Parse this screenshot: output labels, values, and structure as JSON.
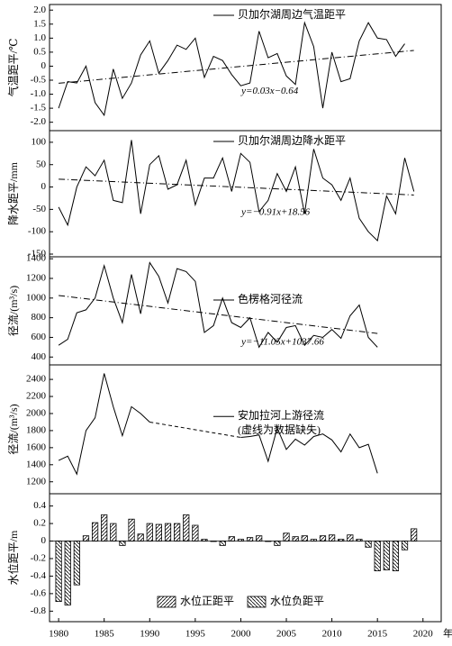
{
  "chart_data": [
    {
      "type": "line",
      "ylabel": "气温距平/℃",
      "xlim": [
        1979,
        2022
      ],
      "ylim": [
        -2.3,
        2.2
      ],
      "yticks": [
        {
          "value": 2,
          "label": "2.0"
        },
        1.5,
        {
          "value": 1,
          "label": "1.0"
        },
        0.5,
        0,
        -0.5,
        {
          "value": -1,
          "label": "-1.0"
        },
        -1.5,
        {
          "value": -2,
          "label": "-2.0"
        }
      ],
      "x": [
        1980,
        1981,
        1982,
        1983,
        1984,
        1985,
        1986,
        1987,
        1988,
        1989,
        1990,
        1991,
        1992,
        1993,
        1994,
        1995,
        1996,
        1997,
        1998,
        1999,
        2000,
        2001,
        2002,
        2003,
        2004,
        2005,
        2006,
        2007,
        2008,
        2009,
        2010,
        2011,
        2012,
        2013,
        2014,
        2015,
        2016,
        2017,
        2018
      ],
      "series": [
        {
          "name": "贝加尔湖周边气温距平",
          "color": "#000000",
          "values": [
            -1.5,
            -0.55,
            -0.6,
            0,
            -1.3,
            -1.75,
            -0.1,
            -1.15,
            -0.6,
            0.4,
            0.9,
            -0.25,
            0.2,
            0.75,
            0.6,
            1.0,
            -0.4,
            0.35,
            0.2,
            -0.3,
            -0.7,
            -0.6,
            1.25,
            0.3,
            0.45,
            -0.35,
            -0.65,
            1.55,
            0.7,
            -1.5,
            0.5,
            -0.55,
            -0.45,
            0.9,
            1.55,
            1.0,
            0.95,
            0.35,
            0.8
          ]
        }
      ],
      "trend": {
        "x": [
          1980,
          2019
        ],
        "values": [
          -0.61,
          0.56
        ],
        "label": "y=0.03x−0.64"
      },
      "legend": "upper"
    },
    {
      "type": "line",
      "ylabel": "降水距平/mm",
      "xlim": [
        1979,
        2022
      ],
      "ylim": [
        -156,
        126
      ],
      "yticks": [
        100,
        50,
        0,
        -50,
        -100,
        -150
      ],
      "x": [
        1980,
        1981,
        1982,
        1983,
        1984,
        1985,
        1986,
        1987,
        1988,
        1989,
        1990,
        1991,
        1992,
        1993,
        1994,
        1995,
        1996,
        1997,
        1998,
        1999,
        2000,
        2001,
        2002,
        2003,
        2004,
        2005,
        2006,
        2007,
        2008,
        2009,
        2010,
        2011,
        2012,
        2013,
        2014,
        2015,
        2016,
        2017,
        2018,
        2019
      ],
      "series": [
        {
          "name": "贝加尔湖周边降水距平",
          "color": "#000000",
          "values": [
            -45,
            -85,
            0,
            45,
            25,
            60,
            -30,
            -35,
            105,
            -60,
            50,
            70,
            -5,
            5,
            60,
            -40,
            20,
            20,
            65,
            -10,
            75,
            55,
            -55,
            -30,
            30,
            -10,
            45,
            -60,
            85,
            20,
            5,
            -30,
            20,
            -70,
            -100,
            -120,
            -20,
            -60,
            65,
            -10
          ]
        }
      ],
      "trend": {
        "x": [
          1980,
          2019
        ],
        "values": [
          17.6,
          -17.9
        ],
        "label": "y=−0.91x+18.56"
      },
      "legend": "upper"
    },
    {
      "type": "line",
      "ylabel": "径流/(m³/s)",
      "xlim": [
        1979,
        2022
      ],
      "ylim": [
        320,
        1420
      ],
      "yticks": [
        1400,
        1200,
        1000,
        800,
        600,
        400
      ],
      "x": [
        1980,
        1981,
        1982,
        1983,
        1984,
        1985,
        1986,
        1987,
        1988,
        1989,
        1990,
        1991,
        1992,
        1993,
        1994,
        1995,
        1996,
        1997,
        1998,
        1999,
        2000,
        2001,
        2002,
        2003,
        2004,
        2005,
        2006,
        2007,
        2008,
        2009,
        2010,
        2011,
        2012,
        2013,
        2014,
        2015
      ],
      "series": [
        {
          "name": "色楞格河径流",
          "color": "#000000",
          "values": [
            520,
            580,
            850,
            880,
            1000,
            1330,
            1000,
            750,
            1240,
            840,
            1360,
            1220,
            950,
            1300,
            1270,
            1170,
            650,
            720,
            1000,
            750,
            700,
            800,
            500,
            650,
            550,
            700,
            720,
            520,
            620,
            600,
            680,
            590,
            820,
            930,
            600,
            500
          ]
        }
      ],
      "trend": {
        "x": [
          1980,
          2015
        ],
        "values": [
          1026,
          640
        ],
        "label": "y=−11.05x+1037.66"
      },
      "legend": "middle"
    },
    {
      "type": "line",
      "ylabel": "径流/(m³/s)",
      "xlim": [
        1979,
        2022
      ],
      "ylim": [
        1060,
        2570
      ],
      "yticks": [
        2400,
        2200,
        2000,
        1800,
        1600,
        1400,
        1200
      ],
      "x": [
        1980,
        1981,
        1982,
        1983,
        1984,
        1985,
        1986,
        1987,
        1988,
        1989,
        1990,
        1991,
        1992,
        1993,
        1994,
        1995,
        1996,
        1997,
        1998,
        1999,
        2000,
        2001,
        2002,
        2003,
        2004,
        2005,
        2006,
        2007,
        2008,
        2009,
        2010,
        2011,
        2012,
        2013,
        2014,
        2015
      ],
      "series": [
        {
          "name": "安加拉河上游径流",
          "color": "#000000",
          "gap_style": "dashed",
          "values": [
            1450,
            1500,
            1290,
            1800,
            1950,
            2470,
            2080,
            1740,
            2080,
            2000,
            1900,
            null,
            null,
            null,
            null,
            null,
            null,
            null,
            null,
            null,
            1720,
            1730,
            1750,
            1440,
            1830,
            1580,
            1700,
            1630,
            1730,
            1760,
            1690,
            1550,
            1760,
            1600,
            1640,
            1300
          ]
        }
      ],
      "note": "(虚线为数据缺失)",
      "legend": "middle"
    },
    {
      "type": "bar",
      "ylabel": "水位距平/m",
      "xlabel": "年",
      "xlim": [
        1979,
        2022
      ],
      "ylim": [
        -0.92,
        0.54
      ],
      "yticks": [
        0.4,
        0.2,
        0,
        -0.2,
        -0.4,
        -0.6,
        -0.8
      ],
      "xticks": [
        1980,
        1985,
        1990,
        1995,
        2000,
        2005,
        2010,
        2015,
        2020
      ],
      "x": [
        1980,
        1981,
        1982,
        1983,
        1984,
        1985,
        1986,
        1987,
        1988,
        1989,
        1990,
        1991,
        1992,
        1993,
        1994,
        1995,
        1996,
        1997,
        1998,
        1999,
        2000,
        2001,
        2002,
        2003,
        2004,
        2005,
        2006,
        2007,
        2008,
        2009,
        2010,
        2011,
        2012,
        2013,
        2014,
        2015,
        2016,
        2017,
        2018,
        2019
      ],
      "series": [
        {
          "name": "水位正距平",
          "color": "#000000",
          "hatch": "/",
          "values": [
            null,
            null,
            null,
            0.06,
            0.21,
            0.3,
            0.2,
            null,
            0.25,
            0.08,
            0.2,
            0.19,
            0.2,
            0.2,
            0.3,
            0.18,
            0.02,
            0,
            null,
            0.05,
            0.02,
            0.04,
            0.06,
            0,
            null,
            0.09,
            0.05,
            0.06,
            0.02,
            0.06,
            0.07,
            0.02,
            0.07,
            0.02,
            null,
            null,
            null,
            null,
            null,
            0.14
          ]
        },
        {
          "name": "水位负距平",
          "color": "#000000",
          "hatch": "\\",
          "values": [
            -0.69,
            -0.73,
            -0.5,
            null,
            null,
            null,
            null,
            -0.05,
            null,
            null,
            null,
            null,
            null,
            null,
            null,
            null,
            null,
            null,
            -0.05,
            null,
            null,
            null,
            null,
            null,
            -0.05,
            null,
            null,
            null,
            null,
            null,
            null,
            null,
            null,
            null,
            -0.07,
            -0.34,
            -0.33,
            -0.34,
            -0.1,
            null
          ]
        }
      ],
      "legend": "lower"
    }
  ]
}
